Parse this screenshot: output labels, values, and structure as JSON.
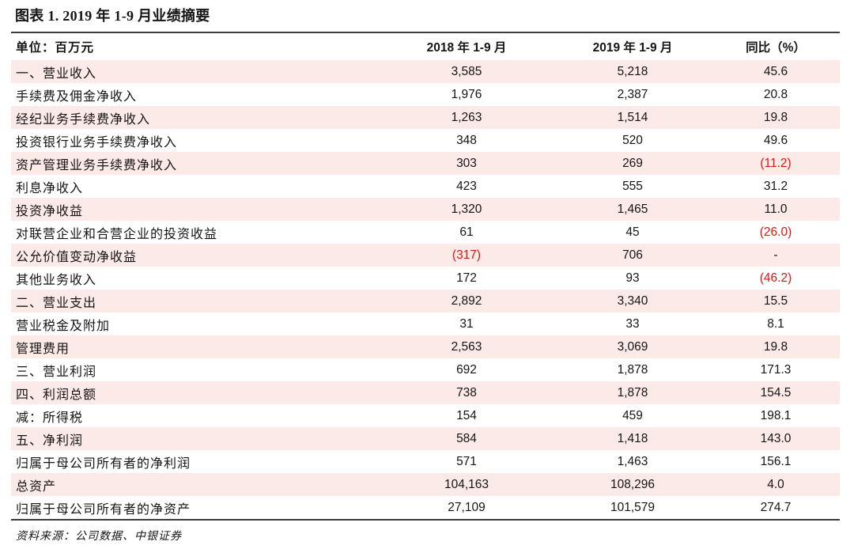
{
  "title": "图表 1. 2019 年 1-9 月业绩摘要",
  "table": {
    "unit_label": "单位：百万元",
    "columns": [
      "2018 年 1-9 月",
      "2019 年 1-9 月",
      "同比（%）"
    ],
    "rows": [
      {
        "label": "一、营业收入",
        "values": [
          "3,585",
          "5,218",
          "45.6"
        ]
      },
      {
        "label": "手续费及佣金净收入",
        "values": [
          "1,976",
          "2,387",
          "20.8"
        ]
      },
      {
        "label": "经纪业务手续费净收入",
        "values": [
          "1,263",
          "1,514",
          "19.8"
        ]
      },
      {
        "label": "投资银行业务手续费净收入",
        "values": [
          "348",
          "520",
          "49.6"
        ]
      },
      {
        "label": "资产管理业务手续费净收入",
        "values": [
          "303",
          "269",
          "(11.2)"
        ]
      },
      {
        "label": "利息净收入",
        "values": [
          "423",
          "555",
          "31.2"
        ]
      },
      {
        "label": "投资净收益",
        "values": [
          "1,320",
          "1,465",
          "11.0"
        ]
      },
      {
        "label": "对联营企业和合营企业的投资收益",
        "values": [
          "61",
          "45",
          "(26.0)"
        ]
      },
      {
        "label": "公允价值变动净收益",
        "values": [
          "(317)",
          "706",
          "-"
        ]
      },
      {
        "label": "其他业务收入",
        "values": [
          "172",
          "93",
          "(46.2)"
        ]
      },
      {
        "label": "二、营业支出",
        "values": [
          "2,892",
          "3,340",
          "15.5"
        ]
      },
      {
        "label": "营业税金及附加",
        "values": [
          "31",
          "33",
          "8.1"
        ]
      },
      {
        "label": "管理费用",
        "values": [
          "2,563",
          "3,069",
          "19.8"
        ]
      },
      {
        "label": "三、营业利润",
        "values": [
          "692",
          "1,878",
          "171.3"
        ]
      },
      {
        "label": "四、利润总额",
        "values": [
          "738",
          "1,878",
          "154.5"
        ]
      },
      {
        "label": "减：所得税",
        "values": [
          "154",
          "459",
          "198.1"
        ]
      },
      {
        "label": "五、净利润",
        "values": [
          "584",
          "1,418",
          "143.0"
        ]
      },
      {
        "label": "归属于母公司所有者的净利润",
        "values": [
          "571",
          "1,463",
          "156.1"
        ]
      },
      {
        "label": "总资产",
        "values": [
          "104,163",
          "108,296",
          "4.0"
        ]
      },
      {
        "label": "归属于母公司所有者的净资产",
        "values": [
          "27,109",
          "101,579",
          "274.7"
        ]
      }
    ]
  },
  "footer": {
    "source": "资料来源：公司数据、中银证券"
  },
  "colors": {
    "stripe_pink": "#fbeae7",
    "negative_red": "#e8130c",
    "rule_dark": "#3c3c3c",
    "text": "#151515"
  }
}
